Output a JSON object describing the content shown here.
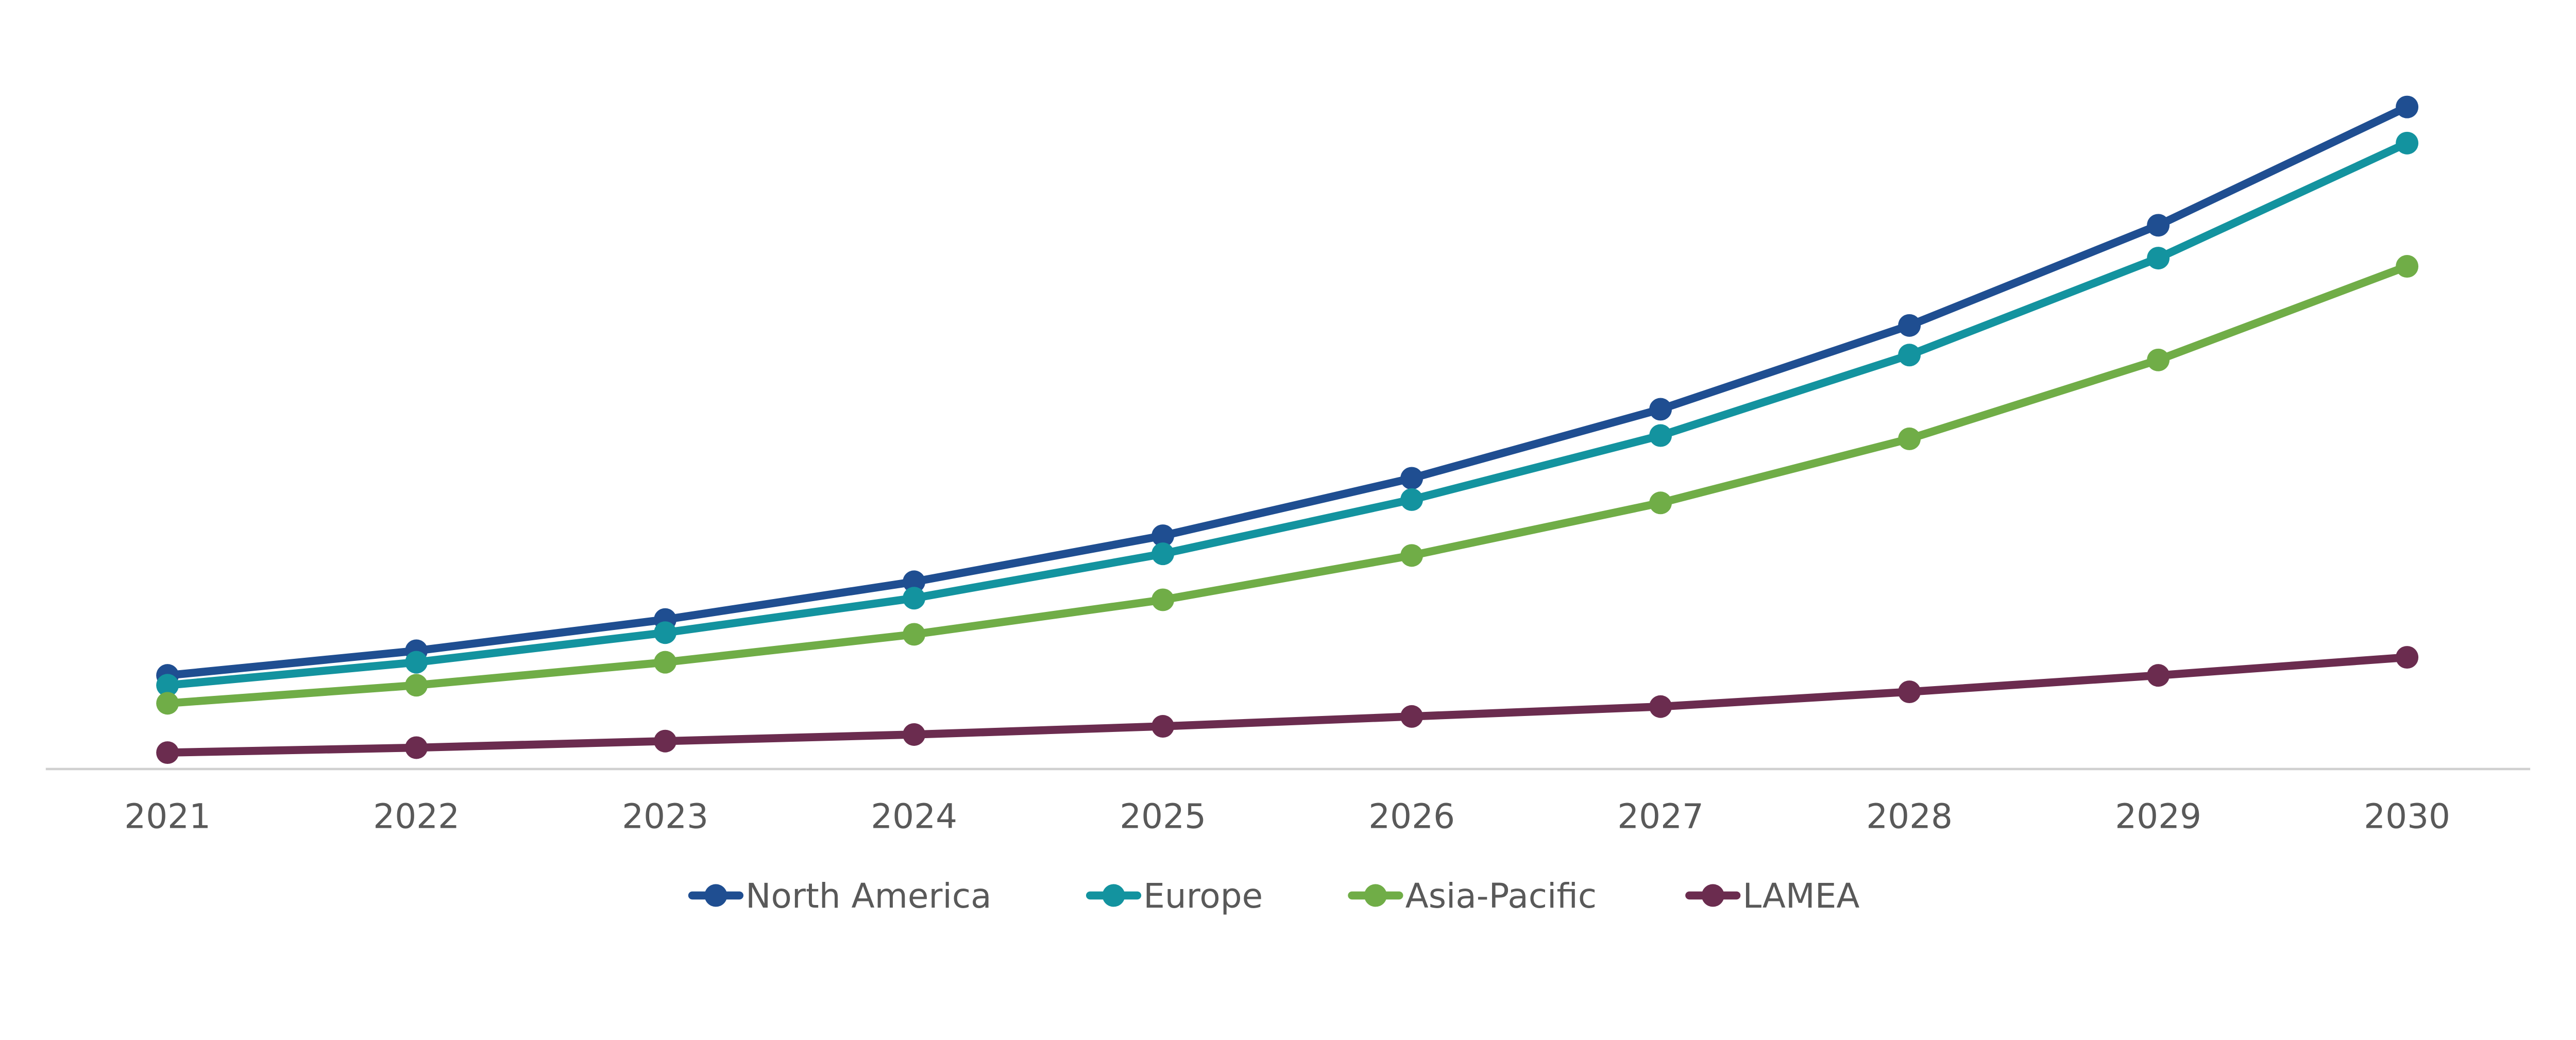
{
  "chart_data": {
    "type": "line",
    "title": "",
    "xlabel": "",
    "ylabel": "",
    "y_axis_shown": false,
    "grid": false,
    "legend_position": "bottom",
    "categories": [
      "2021",
      "2022",
      "2023",
      "2024",
      "2025",
      "2026",
      "2027",
      "2028",
      "2029",
      "2030"
    ],
    "ylim": [
      0,
      420
    ],
    "series": [
      {
        "name": "North America",
        "color": "#1F4E91",
        "values": [
          57,
          72,
          91,
          114,
          142,
          177,
          219,
          270,
          331,
          403
        ]
      },
      {
        "name": "Europe",
        "color": "#13939F",
        "values": [
          51,
          65,
          83,
          104,
          131,
          164,
          203,
          252,
          311,
          381
        ]
      },
      {
        "name": "Asia-Pacific",
        "color": "#70AD47",
        "values": [
          40,
          51,
          65,
          82,
          103,
          130,
          162,
          201,
          249,
          306
        ]
      },
      {
        "name": "LAMEA",
        "color": "#6B2C4F",
        "values": [
          10,
          13,
          17,
          21,
          26,
          32,
          38,
          47,
          57,
          68
        ]
      }
    ],
    "axis_color": "#D0D0D0",
    "text_color": "#595959"
  }
}
